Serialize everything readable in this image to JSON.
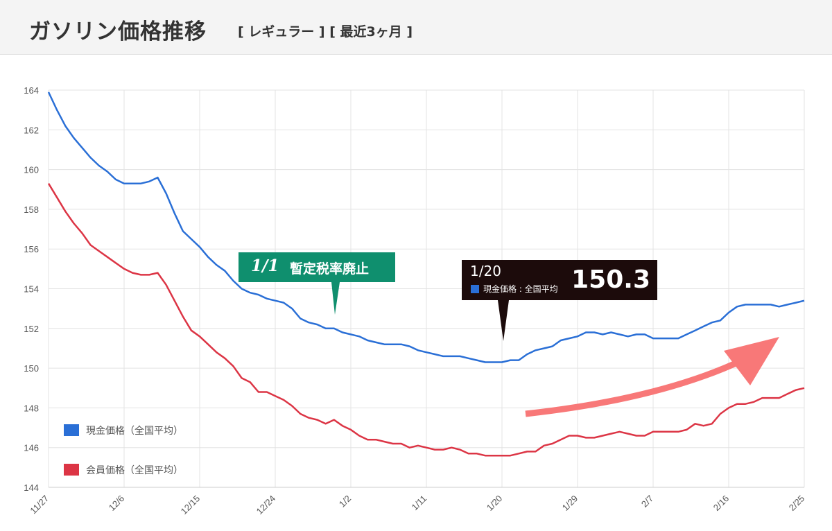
{
  "header": {
    "title": "ガソリン価格推移",
    "subtitle": "[ レギュラー ] [ 最近3ヶ月 ]"
  },
  "annotation": {
    "date": "1/1",
    "text": "暫定税率廃止"
  },
  "tooltip": {
    "date": "1/20",
    "series": "現金価格 : 全国平均",
    "value": "150.3"
  },
  "colors": {
    "cash": "#2a6fd6",
    "member": "#dc3545",
    "annotation": "#0f8f6e",
    "trend_arrow": "#f87878"
  },
  "chart_data": {
    "type": "line",
    "ylim": [
      144,
      164
    ],
    "yticks": [
      144,
      146,
      148,
      150,
      152,
      154,
      156,
      158,
      160,
      162,
      164
    ],
    "xlim": [
      0,
      90
    ],
    "xticks": [
      {
        "label": "11/27",
        "x": 0
      },
      {
        "label": "12/6",
        "x": 9
      },
      {
        "label": "12/15",
        "x": 18
      },
      {
        "label": "12/24",
        "x": 27
      },
      {
        "label": "1/2",
        "x": 36
      },
      {
        "label": "1/11",
        "x": 45
      },
      {
        "label": "1/20",
        "x": 54
      },
      {
        "label": "1/29",
        "x": 63
      },
      {
        "label": "2/7",
        "x": 72
      },
      {
        "label": "2/16",
        "x": 81
      },
      {
        "label": "2/25",
        "x": 90
      }
    ],
    "grid": true,
    "legend_position": "bottom-left",
    "series": [
      {
        "name": "現金価格（全国平均）",
        "color": "#2a6fd6",
        "points": [
          [
            0,
            163.9
          ],
          [
            1,
            163
          ],
          [
            2,
            162.2
          ],
          [
            3,
            161.6
          ],
          [
            4,
            161.1
          ],
          [
            5,
            160.6
          ],
          [
            6,
            160.2
          ],
          [
            7,
            159.9
          ],
          [
            8,
            159.5
          ],
          [
            9,
            159.3
          ],
          [
            10,
            159.3
          ],
          [
            11,
            159.3
          ],
          [
            12,
            159.4
          ],
          [
            13,
            159.6
          ],
          [
            14,
            158.8
          ],
          [
            15,
            157.8
          ],
          [
            16,
            156.9
          ],
          [
            17,
            156.5
          ],
          [
            18,
            156.1
          ],
          [
            19,
            155.6
          ],
          [
            20,
            155.2
          ],
          [
            21,
            154.9
          ],
          [
            22,
            154.4
          ],
          [
            23,
            154
          ],
          [
            24,
            153.8
          ],
          [
            25,
            153.7
          ],
          [
            26,
            153.5
          ],
          [
            27,
            153.4
          ],
          [
            28,
            153.3
          ],
          [
            29,
            153
          ],
          [
            30,
            152.5
          ],
          [
            31,
            152.3
          ],
          [
            32,
            152.2
          ],
          [
            33,
            152
          ],
          [
            34,
            152
          ],
          [
            35,
            151.8
          ],
          [
            36,
            151.7
          ],
          [
            37,
            151.6
          ],
          [
            38,
            151.4
          ],
          [
            39,
            151.3
          ],
          [
            40,
            151.2
          ],
          [
            41,
            151.2
          ],
          [
            42,
            151.2
          ],
          [
            43,
            151.1
          ],
          [
            44,
            150.9
          ],
          [
            45,
            150.8
          ],
          [
            46,
            150.7
          ],
          [
            47,
            150.6
          ],
          [
            48,
            150.6
          ],
          [
            49,
            150.6
          ],
          [
            50,
            150.5
          ],
          [
            51,
            150.4
          ],
          [
            52,
            150.3
          ],
          [
            53,
            150.3
          ],
          [
            54,
            150.3
          ],
          [
            55,
            150.4
          ],
          [
            56,
            150.4
          ],
          [
            57,
            150.7
          ],
          [
            58,
            150.9
          ],
          [
            59,
            151
          ],
          [
            60,
            151.1
          ],
          [
            61,
            151.4
          ],
          [
            62,
            151.5
          ],
          [
            63,
            151.6
          ],
          [
            64,
            151.8
          ],
          [
            65,
            151.8
          ],
          [
            66,
            151.7
          ],
          [
            67,
            151.8
          ],
          [
            68,
            151.7
          ],
          [
            69,
            151.6
          ],
          [
            70,
            151.7
          ],
          [
            71,
            151.7
          ],
          [
            72,
            151.5
          ],
          [
            73,
            151.5
          ],
          [
            74,
            151.5
          ],
          [
            75,
            151.5
          ],
          [
            76,
            151.7
          ],
          [
            77,
            151.9
          ],
          [
            78,
            152.1
          ],
          [
            79,
            152.3
          ],
          [
            80,
            152.4
          ],
          [
            81,
            152.8
          ],
          [
            82,
            153.1
          ],
          [
            83,
            153.2
          ],
          [
            84,
            153.2
          ],
          [
            85,
            153.2
          ],
          [
            86,
            153.2
          ],
          [
            87,
            153.1
          ],
          [
            88,
            153.2
          ],
          [
            89,
            153.3
          ],
          [
            90,
            153.4
          ]
        ]
      },
      {
        "name": "会員価格（全国平均）",
        "color": "#dc3545",
        "points": [
          [
            0,
            159.3
          ],
          [
            1,
            158.6
          ],
          [
            2,
            157.9
          ],
          [
            3,
            157.3
          ],
          [
            4,
            156.8
          ],
          [
            5,
            156.2
          ],
          [
            6,
            155.9
          ],
          [
            7,
            155.6
          ],
          [
            8,
            155.3
          ],
          [
            9,
            155
          ],
          [
            10,
            154.8
          ],
          [
            11,
            154.7
          ],
          [
            12,
            154.7
          ],
          [
            13,
            154.8
          ],
          [
            14,
            154.2
          ],
          [
            15,
            153.4
          ],
          [
            16,
            152.6
          ],
          [
            17,
            151.9
          ],
          [
            18,
            151.6
          ],
          [
            19,
            151.2
          ],
          [
            20,
            150.8
          ],
          [
            21,
            150.5
          ],
          [
            22,
            150.1
          ],
          [
            23,
            149.5
          ],
          [
            24,
            149.3
          ],
          [
            25,
            148.8
          ],
          [
            26,
            148.8
          ],
          [
            27,
            148.6
          ],
          [
            28,
            148.4
          ],
          [
            29,
            148.1
          ],
          [
            30,
            147.7
          ],
          [
            31,
            147.5
          ],
          [
            32,
            147.4
          ],
          [
            33,
            147.2
          ],
          [
            34,
            147.4
          ],
          [
            35,
            147.1
          ],
          [
            36,
            146.9
          ],
          [
            37,
            146.6
          ],
          [
            38,
            146.4
          ],
          [
            39,
            146.4
          ],
          [
            40,
            146.3
          ],
          [
            41,
            146.2
          ],
          [
            42,
            146.2
          ],
          [
            43,
            146
          ],
          [
            44,
            146.1
          ],
          [
            45,
            146
          ],
          [
            46,
            145.9
          ],
          [
            47,
            145.9
          ],
          [
            48,
            146
          ],
          [
            49,
            145.9
          ],
          [
            50,
            145.7
          ],
          [
            51,
            145.7
          ],
          [
            52,
            145.6
          ],
          [
            53,
            145.6
          ],
          [
            54,
            145.6
          ],
          [
            55,
            145.6
          ],
          [
            56,
            145.7
          ],
          [
            57,
            145.8
          ],
          [
            58,
            145.8
          ],
          [
            59,
            146.1
          ],
          [
            60,
            146.2
          ],
          [
            61,
            146.4
          ],
          [
            62,
            146.6
          ],
          [
            63,
            146.6
          ],
          [
            64,
            146.5
          ],
          [
            65,
            146.5
          ],
          [
            66,
            146.6
          ],
          [
            67,
            146.7
          ],
          [
            68,
            146.8
          ],
          [
            69,
            146.7
          ],
          [
            70,
            146.6
          ],
          [
            71,
            146.6
          ],
          [
            72,
            146.8
          ],
          [
            73,
            146.8
          ],
          [
            74,
            146.8
          ],
          [
            75,
            146.8
          ],
          [
            76,
            146.9
          ],
          [
            77,
            147.2
          ],
          [
            78,
            147.1
          ],
          [
            79,
            147.2
          ],
          [
            80,
            147.7
          ],
          [
            81,
            148
          ],
          [
            82,
            148.2
          ],
          [
            83,
            148.2
          ],
          [
            84,
            148.3
          ],
          [
            85,
            148.5
          ],
          [
            86,
            148.5
          ],
          [
            87,
            148.5
          ],
          [
            88,
            148.7
          ],
          [
            89,
            148.9
          ],
          [
            90,
            149
          ]
        ]
      }
    ]
  }
}
